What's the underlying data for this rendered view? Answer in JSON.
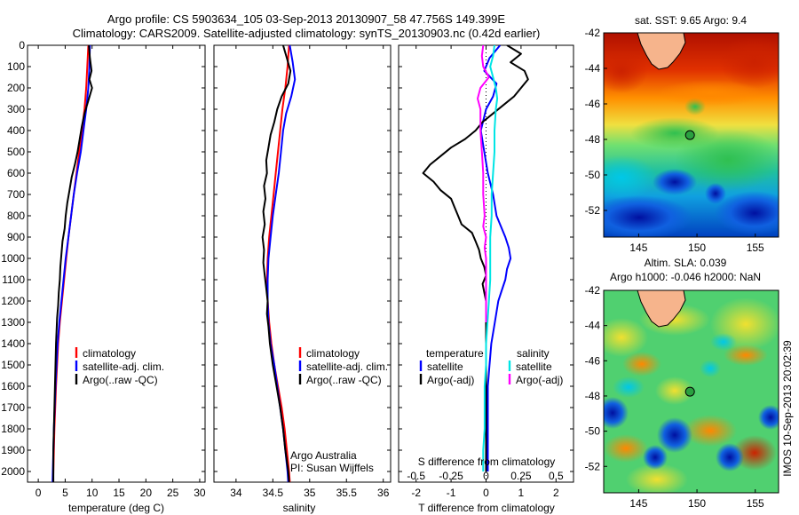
{
  "header": {
    "line1": "Argo profile: CS 5903634_105 03-Sep-2013 20130907_58 47.756S 149.399E",
    "line2": "Climatology: CARS2009. Satellite-adjusted climatology: synTS_20130903.nc (0.42d earlier)"
  },
  "colors": {
    "climatology": "#ff0000",
    "satellite": "#0000ff",
    "argo": "#000000",
    "satellite_salinity_diff": "#00e5e5",
    "argo_salinity_diff": "#ff00ff"
  },
  "credit": {
    "line1": "Argo Australia",
    "line2": "PI: Susan Wijffels"
  },
  "timestamp": "IMOS 10-Sep-2013 20:02:39",
  "chart_data": [
    {
      "type": "line",
      "xlabel": "temperature (deg C)",
      "ylabel": "",
      "xlim": [
        -2,
        31
      ],
      "ylim": [
        2050,
        0
      ],
      "xticks": [
        0,
        5,
        10,
        15,
        20,
        25,
        30
      ],
      "yticks": [
        0,
        100,
        200,
        300,
        400,
        500,
        600,
        700,
        800,
        900,
        1000,
        1100,
        1200,
        1300,
        1400,
        1500,
        1600,
        1700,
        1800,
        1900,
        2000
      ],
      "legend": [
        "climatology",
        "satellite-adj. clim.",
        "Argo(..raw -QC)"
      ],
      "legend_position": "lower-middle",
      "series": [
        {
          "name": "climatology",
          "color": "#ff0000",
          "depth": [
            0,
            100,
            200,
            300,
            400,
            500,
            600,
            700,
            800,
            900,
            1000,
            1100,
            1200,
            1300,
            1400,
            1600,
            1800,
            2000,
            2050
          ],
          "values": [
            9.3,
            9.1,
            8.9,
            8.6,
            8.1,
            7.6,
            7.1,
            6.6,
            6.1,
            5.6,
            5.2,
            4.8,
            4.4,
            4.0,
            3.7,
            3.3,
            3.0,
            2.8,
            2.75
          ]
        },
        {
          "name": "satellite-adj. clim.",
          "color": "#0000ff",
          "depth": [
            0,
            100,
            200,
            300,
            400,
            500,
            600,
            700,
            800,
            900,
            1000,
            1100,
            1200,
            1300,
            1400,
            1600,
            1800,
            2000,
            2050
          ],
          "values": [
            9.6,
            9.5,
            9.3,
            8.9,
            8.4,
            7.9,
            7.2,
            6.6,
            6.1,
            5.6,
            5.1,
            4.7,
            4.3,
            3.9,
            3.6,
            3.2,
            2.9,
            2.7,
            2.65
          ]
        },
        {
          "name": "Argo(..raw -QC)",
          "color": "#000000",
          "depth": [
            0,
            60,
            120,
            160,
            200,
            260,
            320,
            380,
            440,
            500,
            560,
            620,
            680,
            740,
            800,
            860,
            920,
            980,
            1040,
            1100,
            1160,
            1220,
            1280,
            1340,
            1400,
            1500,
            1600,
            1700,
            1800,
            1900,
            2000,
            2050
          ],
          "values": [
            9.4,
            9.6,
            9.9,
            9.5,
            10.0,
            9.3,
            8.6,
            8.1,
            7.7,
            7.3,
            6.8,
            6.2,
            5.8,
            5.4,
            5.1,
            4.9,
            4.5,
            4.3,
            4.1,
            4.0,
            3.8,
            3.7,
            3.5,
            3.4,
            3.3,
            3.2,
            3.1,
            3.0,
            2.9,
            2.8,
            2.8,
            2.8
          ]
        }
      ]
    },
    {
      "type": "line",
      "xlabel": "salinity",
      "xlim": [
        33.7,
        36.1
      ],
      "ylim": [
        2050,
        0
      ],
      "xticks": [
        34,
        34.5,
        35,
        35.5,
        36
      ],
      "legend": [
        "climatology",
        "satellite-adj. clim.",
        "Argo(..raw -QC)"
      ],
      "legend_position": "lower-middle",
      "series": [
        {
          "name": "climatology",
          "color": "#ff0000",
          "depth": [
            0,
            100,
            200,
            300,
            400,
            500,
            600,
            700,
            800,
            900,
            1000,
            1100,
            1200,
            1300,
            1400,
            1500,
            1600,
            1700,
            1800,
            1900,
            2000,
            2050
          ],
          "values": [
            34.72,
            34.7,
            34.67,
            34.63,
            34.6,
            34.57,
            34.54,
            34.51,
            34.48,
            34.45,
            34.43,
            34.42,
            34.43,
            34.45,
            34.48,
            34.52,
            34.57,
            34.62,
            34.66,
            34.69,
            34.72,
            34.73
          ]
        },
        {
          "name": "satellite-adj. clim.",
          "color": "#0000ff",
          "depth": [
            0,
            80,
            160,
            240,
            320,
            400,
            500,
            600,
            700,
            800,
            900,
            1000,
            1100,
            1200,
            1300,
            1400,
            1500,
            1600,
            1700,
            1800,
            1900,
            2000,
            2050
          ],
          "values": [
            34.73,
            34.77,
            34.8,
            34.75,
            34.68,
            34.64,
            34.61,
            34.58,
            34.54,
            34.5,
            34.47,
            34.44,
            34.43,
            34.43,
            34.44,
            34.47,
            34.52,
            34.56,
            34.6,
            34.64,
            34.67,
            34.7,
            34.71
          ]
        },
        {
          "name": "Argo(..raw -QC)",
          "color": "#000000",
          "depth": [
            0,
            60,
            120,
            180,
            240,
            300,
            360,
            420,
            480,
            540,
            600,
            660,
            720,
            780,
            840,
            900,
            960,
            1020,
            1080,
            1140,
            1200,
            1260,
            1320,
            1400,
            1500,
            1600,
            1700,
            1800,
            1900,
            2000,
            2050
          ],
          "values": [
            34.64,
            34.69,
            34.74,
            34.71,
            34.62,
            34.56,
            34.52,
            34.47,
            34.44,
            34.41,
            34.42,
            34.38,
            34.4,
            34.37,
            34.39,
            34.36,
            34.38,
            34.37,
            34.39,
            34.41,
            34.43,
            34.42,
            34.44,
            34.46,
            34.5,
            34.55,
            34.6,
            34.64,
            34.67,
            34.71,
            34.72
          ]
        }
      ],
      "annotations": [
        "Argo Australia",
        "PI: Susan Wijffels"
      ]
    },
    {
      "type": "line",
      "xlabel": "T difference from climatology",
      "x2label": "S difference from climatology",
      "xlim": [
        -2.5,
        2.5
      ],
      "ylim": [
        2050,
        0
      ],
      "xticks": [
        -2,
        -1,
        0,
        1,
        2
      ],
      "x2ticks": [
        -0.5,
        -0.25,
        0,
        0.25,
        0.5
      ],
      "legend": [
        "temperature",
        "satellite",
        "Argo(-adj)",
        "salinity",
        "satellite",
        "Argo(-adj)"
      ],
      "legend_position": "lower-middle",
      "series": [
        {
          "name": "satellite",
          "group": "temperature",
          "color": "#0000ff",
          "depth": [
            0,
            60,
            120,
            180,
            240,
            300,
            400,
            500,
            600,
            700,
            800,
            900,
            950,
            1000,
            1050,
            1100,
            1150,
            1200,
            1300,
            1400,
            1500,
            1600,
            1800,
            2000
          ],
          "values": [
            0.4,
            0.1,
            -0.05,
            0.3,
            0.2,
            0.0,
            -0.15,
            -0.05,
            0.05,
            0.2,
            0.3,
            0.55,
            0.65,
            0.7,
            0.6,
            0.55,
            0.45,
            0.35,
            0.25,
            0.15,
            0.1,
            0.05,
            0.05,
            0.05
          ]
        },
        {
          "name": "Argo(-adj)",
          "group": "temperature",
          "color": "#000000",
          "depth": [
            0,
            40,
            80,
            120,
            160,
            200,
            240,
            280,
            320,
            360,
            400,
            440,
            480,
            520,
            560,
            600,
            640,
            680,
            720,
            760,
            800,
            840,
            880,
            920,
            960,
            1000,
            1040,
            1080,
            1120,
            1160,
            1200,
            1300,
            1400,
            1500,
            1600,
            1800,
            2000
          ],
          "values": [
            0.6,
            1.0,
            0.7,
            1.1,
            1.2,
            1.0,
            0.8,
            0.5,
            0.2,
            -0.1,
            -0.3,
            -0.6,
            -1.0,
            -1.3,
            -1.6,
            -1.8,
            -1.5,
            -1.3,
            -1.0,
            -0.9,
            -0.8,
            -0.7,
            -0.4,
            -0.3,
            -0.2,
            -0.15,
            -0.05,
            0.0,
            -0.1,
            -0.05,
            0.0,
            0.0,
            0.0,
            0.0,
            0.0,
            0.0,
            0.0
          ]
        },
        {
          "name": "satellite",
          "group": "salinity",
          "color": "#00e5e5",
          "depth": [
            0,
            50,
            100,
            150,
            200,
            250,
            300,
            400,
            500,
            600,
            700,
            800,
            900,
            1000,
            1100,
            1200,
            1300,
            1400,
            1500,
            1600,
            1700,
            1800,
            1900,
            2000
          ],
          "values": [
            0.06,
            0.05,
            0.03,
            0.05,
            0.07,
            0.08,
            0.07,
            0.06,
            0.06,
            0.05,
            0.04,
            0.04,
            0.03,
            0.03,
            0.03,
            0.02,
            0.01,
            0.0,
            0.0,
            -0.01,
            -0.01,
            -0.01,
            -0.02,
            -0.02
          ]
        },
        {
          "name": "Argo(-adj)",
          "group": "salinity",
          "color": "#ff00ff",
          "depth": [
            0,
            50,
            100,
            150,
            200,
            250,
            300,
            400,
            500,
            600,
            700,
            800,
            850,
            900,
            950,
            1000,
            1100,
            1200,
            1300
          ],
          "values": [
            -0.02,
            -0.03,
            -0.02,
            0.02,
            -0.04,
            -0.06,
            -0.04,
            -0.04,
            -0.03,
            -0.02,
            -0.02,
            -0.01,
            -0.02,
            0.0,
            -0.01,
            0.0,
            0.0,
            0.0,
            0.0
          ]
        }
      ]
    },
    {
      "type": "heatmap",
      "title": "sat. SST: 9.65 Argo: 9.4",
      "xticks": [
        145,
        150,
        155
      ],
      "yticks": [
        -42,
        -44,
        -46,
        -48,
        -50,
        -52
      ],
      "xlim": [
        142,
        157
      ],
      "ylim": [
        -53.5,
        -42
      ],
      "marker": {
        "lon": 149.4,
        "lat": -47.756
      }
    },
    {
      "type": "heatmap",
      "title": "Altim. SLA: 0.039",
      "subtitle": "Argo h1000: -0.046 h2000: NaN",
      "xticks": [
        145,
        150,
        155
      ],
      "yticks": [
        -42,
        -44,
        -46,
        -48,
        -50,
        -52
      ],
      "xlim": [
        142,
        157
      ],
      "ylim": [
        -53.5,
        -42
      ],
      "marker": {
        "lon": 149.4,
        "lat": -47.756
      }
    }
  ]
}
